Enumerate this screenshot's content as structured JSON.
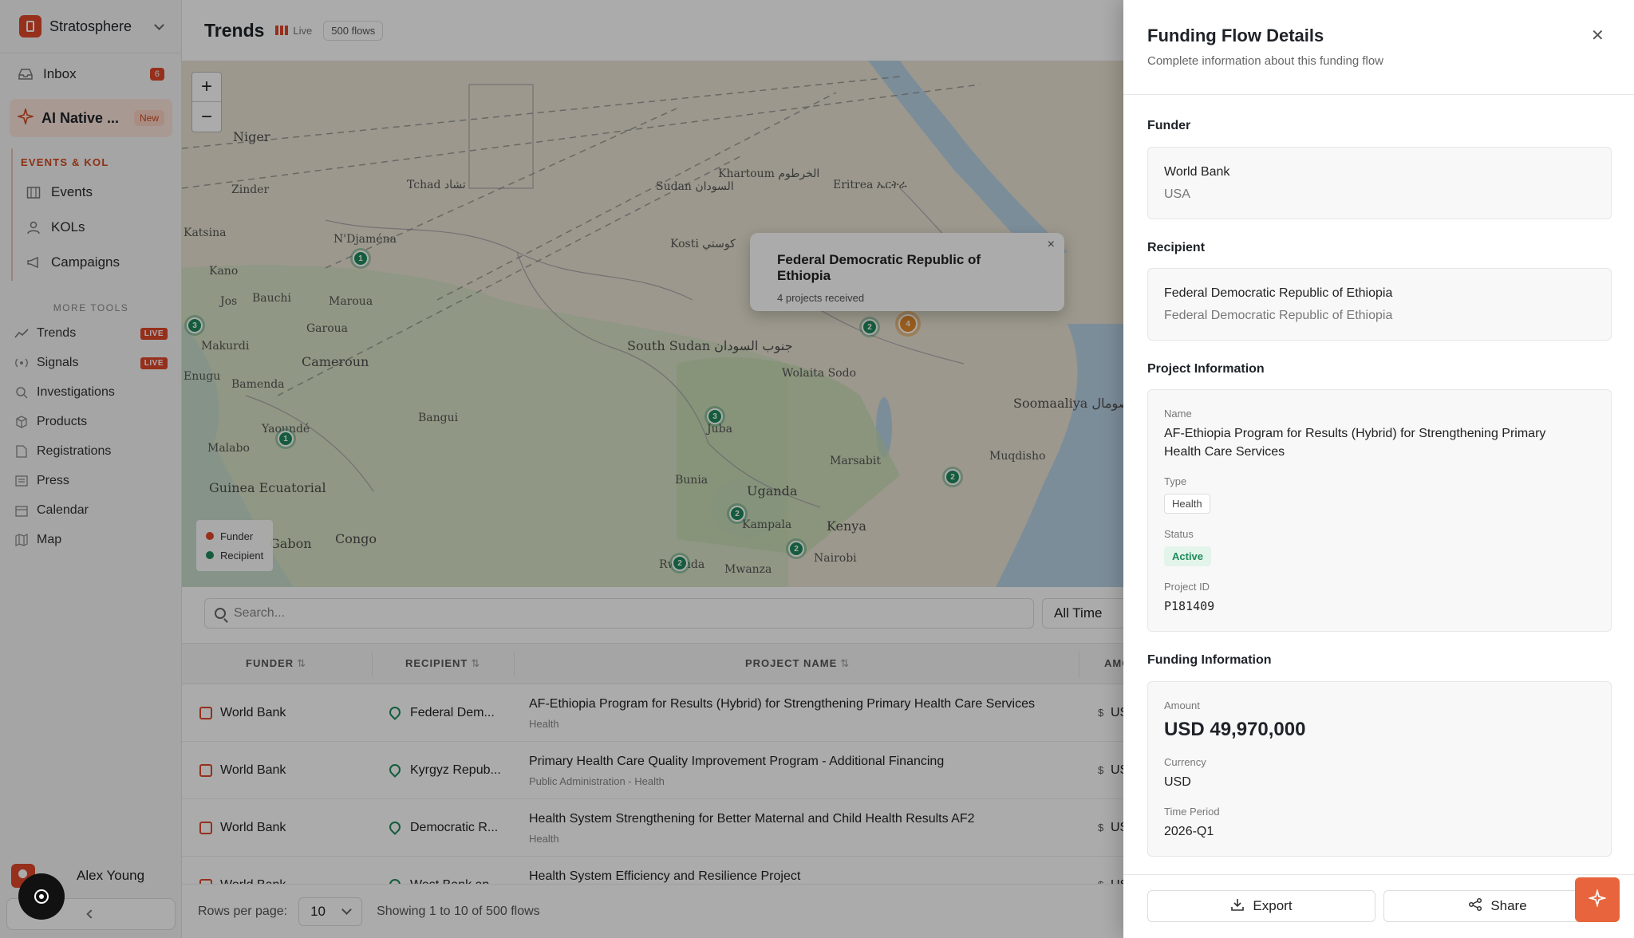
{
  "workspace": {
    "name": "Stratosphere"
  },
  "sidebar": {
    "inbox": {
      "label": "Inbox",
      "count": "6"
    },
    "ai": {
      "label": "AI Native ...",
      "badge": "New"
    },
    "section_title": "EVENTS & KOL",
    "section_items": [
      {
        "label": "Events",
        "icon": "calendar-grid-icon"
      },
      {
        "label": "KOLs",
        "icon": "person-icon"
      },
      {
        "label": "Campaigns",
        "icon": "megaphone-icon"
      }
    ],
    "more_tools_title": "MORE TOOLS",
    "tools": [
      {
        "label": "Trends",
        "badge": "LIVE",
        "icon": "trend-icon"
      },
      {
        "label": "Signals",
        "badge": "LIVE",
        "icon": "signal-icon"
      },
      {
        "label": "Investigations",
        "icon": "search-icon"
      },
      {
        "label": "Products",
        "icon": "box-icon"
      },
      {
        "label": "Registrations",
        "icon": "document-icon"
      },
      {
        "label": "Press",
        "icon": "newspaper-icon"
      },
      {
        "label": "Calendar",
        "icon": "calendar-icon"
      },
      {
        "label": "Map",
        "icon": "map-icon"
      }
    ],
    "user": {
      "name": "Alex Young"
    }
  },
  "header": {
    "title": "Trends",
    "live_label": "Live",
    "flows_chip": "500 flows"
  },
  "map": {
    "labels": [
      "Niger",
      "Tchad تشاد",
      "Sudan السودان",
      "Eritrea ኤርትራ",
      "Kano",
      "N'Djaména",
      "Maroua",
      "Bauchi",
      "Jos",
      "Garoua",
      "Cameroun",
      "Bamenda",
      "Yaoundé",
      "Malabo",
      "Guinea Ecuatorial",
      "Gabon",
      "Congo",
      "Bangui",
      "Juba",
      "South Sudan جنوب السودان",
      "Uganda",
      "Kampala",
      "Kenya",
      "Nairobi",
      "Mwanza",
      "Rwanda",
      "Soomaaliya الصومال",
      "Muqdisho",
      "Wolaita Sodo",
      "Khartoum الخرطوم",
      "Kosti كوستي",
      "Zinder",
      "Katsina",
      "Makurdi",
      "Enugu",
      "Bunia",
      "Marsabit"
    ],
    "clusters": [
      {
        "label": "1"
      },
      {
        "label": "3"
      },
      {
        "label": "2"
      },
      {
        "label": "4"
      },
      {
        "label": "3"
      },
      {
        "label": "2"
      },
      {
        "label": "1"
      },
      {
        "label": "2"
      },
      {
        "label": "2"
      },
      {
        "label": "2"
      }
    ],
    "popup": {
      "title": "Federal Democratic Republic of Ethiopia",
      "subtitle": "4 projects received"
    },
    "legend": [
      {
        "label": "Funder",
        "color": "#e0472a"
      },
      {
        "label": "Recipient",
        "color": "#1f8a5b"
      }
    ]
  },
  "filters": {
    "search_placeholder": "Search...",
    "time": "All Time"
  },
  "table": {
    "headers": {
      "funder": "FUNDER",
      "recipient": "RECIPIENT",
      "project": "PROJECT NAME",
      "amount": "AMO"
    },
    "rows": [
      {
        "funder": "World Bank",
        "recipient": "Federal Dem...",
        "project": "AF-Ethiopia Program for Results (Hybrid) for Strengthening Primary Health Care Services",
        "sector": "Health",
        "amount": "US"
      },
      {
        "funder": "World Bank",
        "recipient": "Kyrgyz Repub...",
        "project": "Primary Health Care Quality Improvement Program - Additional Financing",
        "sector": "Public Administration - Health",
        "amount": "US"
      },
      {
        "funder": "World Bank",
        "recipient": "Democratic R...",
        "project": "Health System Strengthening for Better Maternal and Child Health Results AF2",
        "sector": "Health",
        "amount": "US"
      },
      {
        "funder": "World Bank",
        "recipient": "West Bank an...",
        "project": "Health System Efficiency and Resilience Project",
        "sector": "",
        "amount": "US"
      }
    ]
  },
  "pagination": {
    "rows_label": "Rows per page:",
    "rows_value": "10",
    "showing": "Showing 1 to 10 of 500 flows"
  },
  "drawer": {
    "title": "Funding Flow Details",
    "subtitle": "Complete information about this funding flow",
    "funder": {
      "section": "Funder",
      "name": "World Bank",
      "country": "USA"
    },
    "recipient": {
      "section": "Recipient",
      "name": "Federal Democratic Republic of Ethiopia",
      "detail": "Federal Democratic Republic of Ethiopia"
    },
    "project": {
      "section": "Project Information",
      "name_label": "Name",
      "name_line1": "AF-Ethiopia Program for Results (Hybrid) for Strengthening Primary",
      "name_line2": "Health Care Services",
      "type_label": "Type",
      "type": "Health",
      "status_label": "Status",
      "status": "Active",
      "id_label": "Project ID",
      "id": "P181409"
    },
    "funding": {
      "section": "Funding Information",
      "amount_label": "Amount",
      "amount": "USD 49,970,000",
      "currency_label": "Currency",
      "currency": "USD",
      "period_label": "Time Period",
      "period": "2026-Q1"
    },
    "export_label": "Export",
    "share_label": "Share"
  }
}
